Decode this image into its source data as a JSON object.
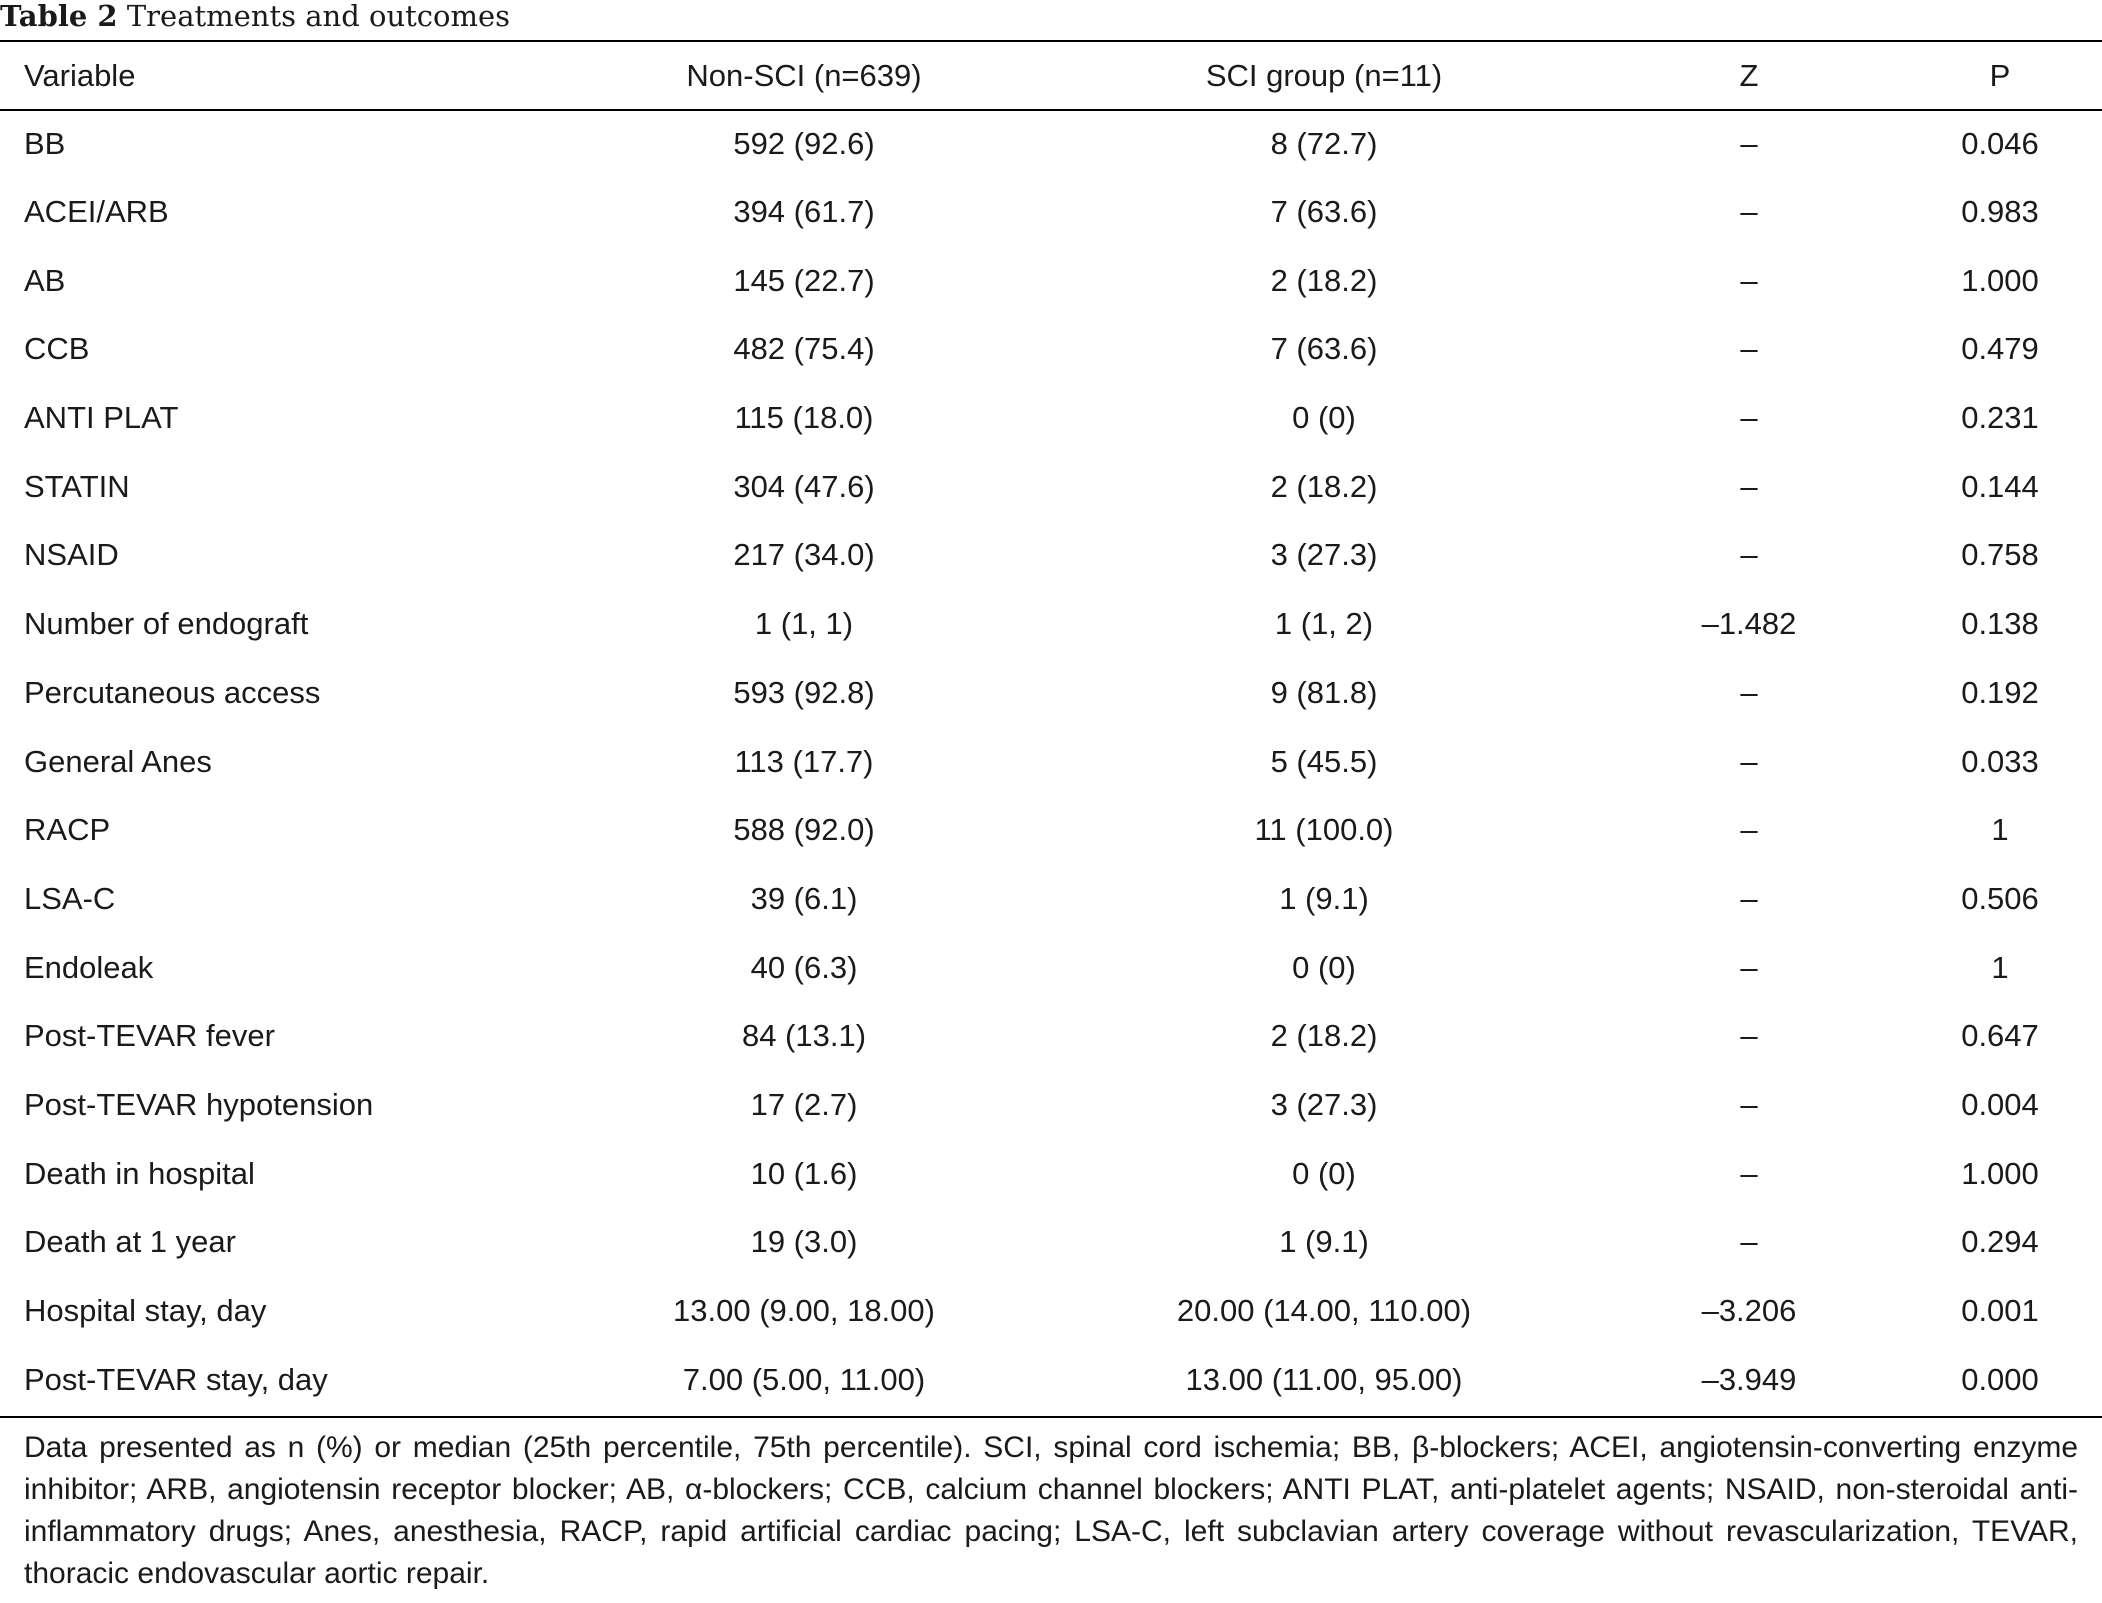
{
  "caption": {
    "label": "Table 2",
    "title": "Treatments and outcomes"
  },
  "table": {
    "columns": [
      "Variable",
      "Non-SCI (n=639)",
      "SCI group (n=11)",
      "Z",
      "P"
    ],
    "rows": [
      [
        "BB",
        "592 (92.6)",
        "8 (72.7)",
        "–",
        "0.046"
      ],
      [
        "ACEI/ARB",
        "394 (61.7)",
        "7 (63.6)",
        "–",
        "0.983"
      ],
      [
        "AB",
        "145 (22.7)",
        "2 (18.2)",
        "–",
        "1.000"
      ],
      [
        "CCB",
        "482 (75.4)",
        "7 (63.6)",
        "–",
        "0.479"
      ],
      [
        "ANTI PLAT",
        "115 (18.0)",
        "0 (0)",
        "–",
        "0.231"
      ],
      [
        "STATIN",
        "304 (47.6)",
        "2 (18.2)",
        "–",
        "0.144"
      ],
      [
        "NSAID",
        "217 (34.0)",
        "3 (27.3)",
        "–",
        "0.758"
      ],
      [
        "Number of endograft",
        "1 (1, 1)",
        "1 (1, 2)",
        "–1.482",
        "0.138"
      ],
      [
        "Percutaneous access",
        "593 (92.8)",
        "9 (81.8)",
        "–",
        "0.192"
      ],
      [
        "General Anes",
        "113 (17.7)",
        "5 (45.5)",
        "–",
        "0.033"
      ],
      [
        "RACP",
        "588 (92.0)",
        "11 (100.0)",
        "–",
        "1"
      ],
      [
        "LSA-C",
        "39 (6.1)",
        "1 (9.1)",
        "–",
        "0.506"
      ],
      [
        "Endoleak",
        "40 (6.3)",
        "0 (0)",
        "–",
        "1"
      ],
      [
        "Post-TEVAR fever",
        "84 (13.1)",
        "2 (18.2)",
        "–",
        "0.647"
      ],
      [
        "Post-TEVAR hypotension",
        "17 (2.7)",
        "3 (27.3)",
        "–",
        "0.004"
      ],
      [
        "Death in hospital",
        "10 (1.6)",
        "0 (0)",
        "–",
        "1.000"
      ],
      [
        "Death at 1 year",
        "19 (3.0)",
        "1 (9.1)",
        "–",
        "0.294"
      ],
      [
        "Hospital stay, day",
        "13.00 (9.00, 18.00)",
        "20.00 (14.00, 110.00)",
        "–3.206",
        "0.001"
      ],
      [
        "Post-TEVAR stay, day",
        "7.00 (5.00, 11.00)",
        "13.00 (11.00, 95.00)",
        "–3.949",
        "0.000"
      ]
    ]
  },
  "footnote": "Data presented as n (%) or median (25th percentile, 75th percentile). SCI, spinal cord ischemia; BB, β-blockers; ACEI, angiotensin-converting enzyme inhibitor; ARB, angiotensin receptor blocker; AB, α-blockers; CCB, calcium channel blockers; ANTI PLAT, anti-platelet agents; NSAID, non-steroidal anti-inflammatory drugs; Anes, anesthesia, RACP, rapid artificial cardiac pacing; LSA-C, left subclavian artery coverage without revascularization, TEVAR, thoracic endovascular aortic repair."
}
